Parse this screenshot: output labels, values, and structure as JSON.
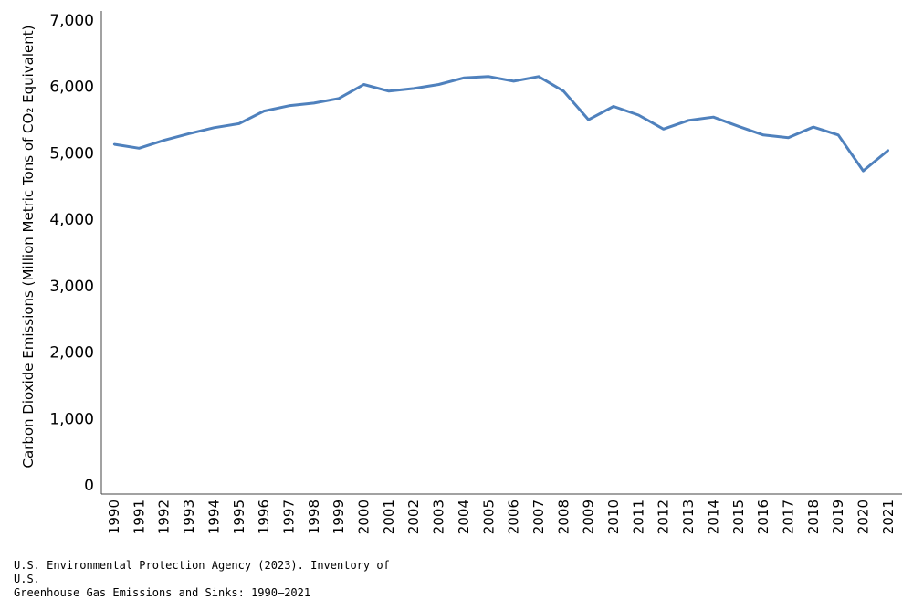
{
  "chart_data": {
    "type": "line",
    "title": "",
    "xlabel": "",
    "ylabel": "Carbon Dioxide Emissions (Million Metric Tons of CO₂ Equivalent)",
    "ylim": [
      0,
      7000
    ],
    "yticks": [
      0,
      1000,
      2000,
      3000,
      4000,
      5000,
      6000,
      7000
    ],
    "ytick_labels": [
      "0",
      "1,000",
      "2,000",
      "3,000",
      "4,000",
      "5,000",
      "6,000",
      "7,000"
    ],
    "categories": [
      "1990",
      "1991",
      "1992",
      "1993",
      "1994",
      "1995",
      "1996",
      "1997",
      "1998",
      "1999",
      "2000",
      "2001",
      "2002",
      "2003",
      "2004",
      "2005",
      "2006",
      "2007",
      "2008",
      "2009",
      "2010",
      "2011",
      "2012",
      "2013",
      "2014",
      "2015",
      "2016",
      "2017",
      "2018",
      "2019",
      "2020",
      "2021"
    ],
    "series": [
      {
        "name": "",
        "color": "#4f81bd",
        "values": [
          5130,
          5070,
          5190,
          5290,
          5380,
          5440,
          5630,
          5710,
          5750,
          5820,
          6030,
          5930,
          5970,
          6030,
          6130,
          6150,
          6080,
          6150,
          5930,
          5500,
          5700,
          5570,
          5360,
          5490,
          5540,
          5400,
          5270,
          5230,
          5390,
          5270,
          4730,
          5040
        ]
      }
    ],
    "grid": false,
    "legend": "none"
  },
  "source_note": {
    "line1": "U.S. Environmental Protection Agency (2023). Inventory of U.S.",
    "line2": "Greenhouse Gas Emissions and Sinks: 1990–2021"
  }
}
